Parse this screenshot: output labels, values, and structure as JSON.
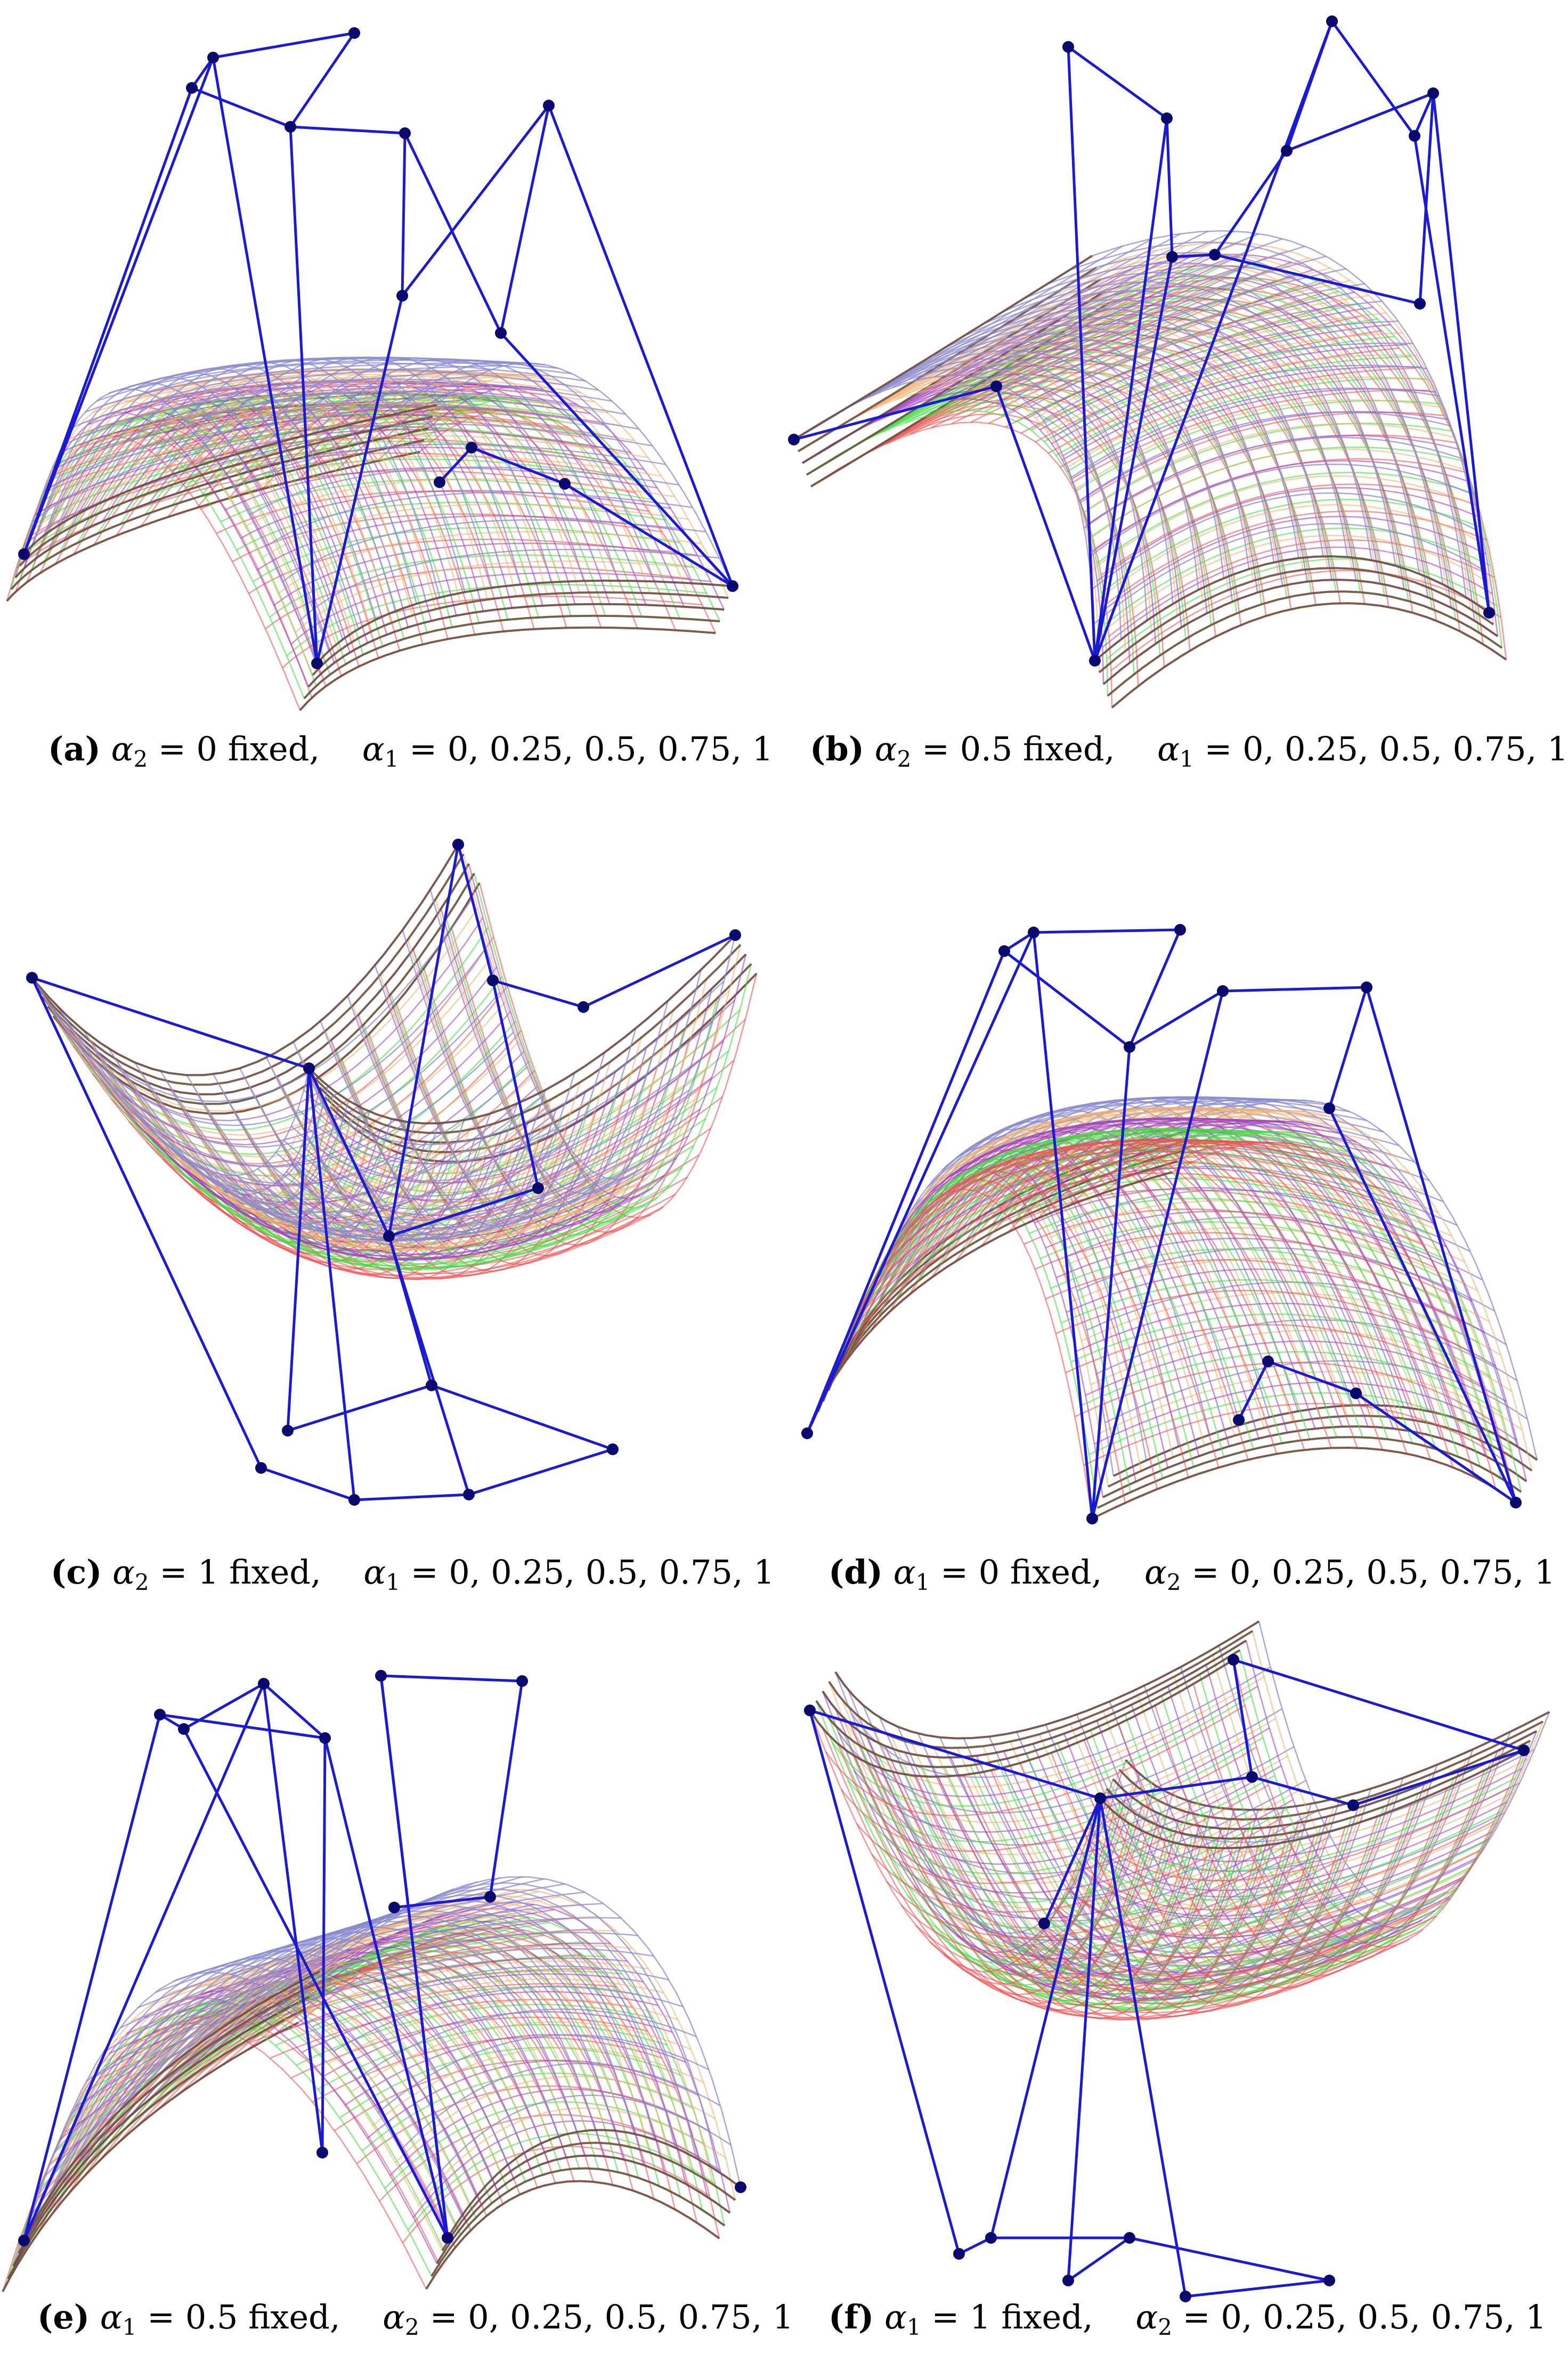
{
  "panels": [
    {
      "id": "a",
      "tag": "(a)",
      "fixed_symbol": "α",
      "fixed_sub": "2",
      "fixed_value": "= 0 fixed,",
      "var_symbol": "α",
      "var_sub": "1",
      "var_values": "= 0, 0.25, 0.5, 0.75, 1"
    },
    {
      "id": "b",
      "tag": "(b)",
      "fixed_symbol": "α",
      "fixed_sub": "2",
      "fixed_value": "= 0.5 fixed,",
      "var_symbol": "α",
      "var_sub": "1",
      "var_values": "= 0, 0.25, 0.5, 0.75, 1"
    },
    {
      "id": "c",
      "tag": "(c)",
      "fixed_symbol": "α",
      "fixed_sub": "2",
      "fixed_value": "= 1 fixed,",
      "var_symbol": "α",
      "var_sub": "1",
      "var_values": "= 0, 0.25, 0.5, 0.75, 1"
    },
    {
      "id": "d",
      "tag": "(d)",
      "fixed_symbol": "α",
      "fixed_sub": "1",
      "fixed_value": "= 0 fixed,",
      "var_symbol": "α",
      "var_sub": "2",
      "var_values": "= 0, 0.25, 0.5, 0.75, 1"
    },
    {
      "id": "e",
      "tag": "(e)",
      "fixed_symbol": "α",
      "fixed_sub": "1",
      "fixed_value": "= 0.5 fixed,",
      "var_symbol": "α",
      "var_sub": "2",
      "var_values": "= 0, 0.25, 0.5, 0.75, 1"
    },
    {
      "id": "f",
      "tag": "(f)",
      "fixed_symbol": "α",
      "fixed_sub": "1",
      "fixed_value": "= 1 fixed,",
      "var_symbol": "α",
      "var_sub": "2",
      "var_values": "= 0, 0.25, 0.5, 0.75, 1"
    }
  ],
  "colors": {
    "control_net": "#1a1ad6",
    "control_point": "#0a0a6e",
    "surface_blue": "#8a8ad0",
    "surface_red": "#f05050",
    "surface_green": "#40e040",
    "surface_purple": "#a040c0",
    "surface_orange": "#f0b070",
    "surface_edge": "#6b4a3a"
  }
}
